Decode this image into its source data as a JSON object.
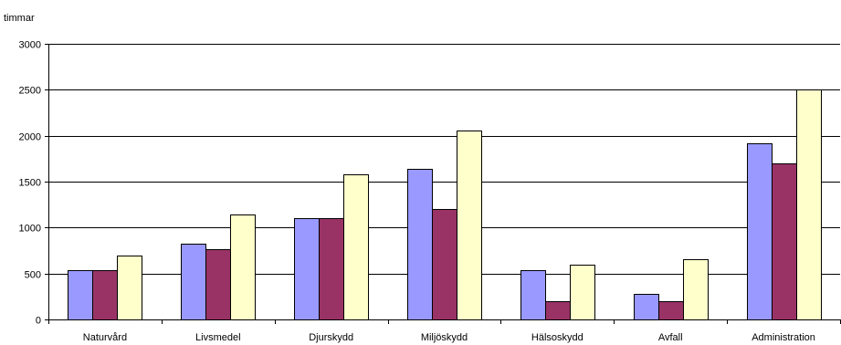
{
  "chart_data": {
    "type": "bar",
    "ylabel": "timmar",
    "categories": [
      "Naturvård",
      "Livsmedel",
      "Djurskydd",
      "Miljöskydd",
      "Hälsoskydd",
      "Avfall",
      "Administration"
    ],
    "series": [
      {
        "values": [
          540,
          820,
          1100,
          1640,
          540,
          280,
          1920
        ],
        "color": "#9999ff"
      },
      {
        "values": [
          540,
          760,
          1100,
          1200,
          200,
          200,
          1700
        ],
        "color": "#993366"
      },
      {
        "values": [
          700,
          1140,
          1580,
          2060,
          600,
          660,
          2500
        ],
        "color": "#ffffcc"
      }
    ],
    "ylim": [
      0,
      3000
    ],
    "yticks": [
      "0",
      "500",
      "1000",
      "1500",
      "2000",
      "2500",
      "3000"
    ],
    "grid": true,
    "legend": "none"
  }
}
